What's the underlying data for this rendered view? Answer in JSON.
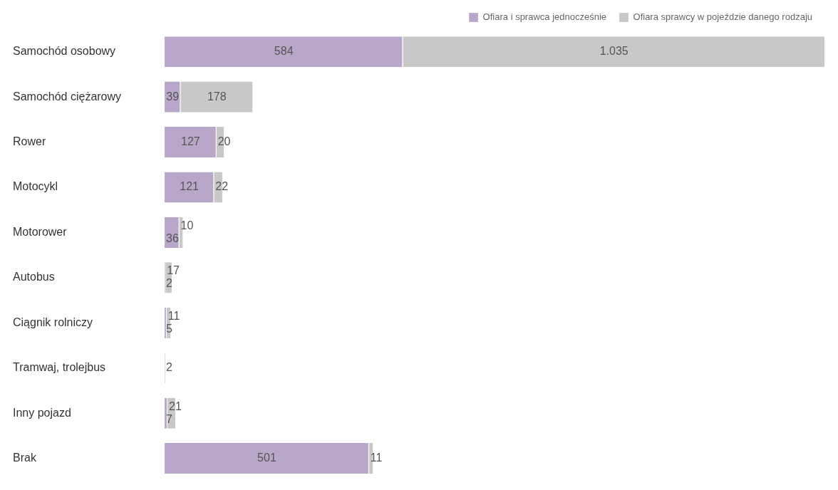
{
  "chart_data": {
    "type": "bar",
    "orientation": "horizontal",
    "stacked": true,
    "legend": "top right",
    "grid": false,
    "tick_labels": "y",
    "categories": [
      "Samochód osobowy",
      "Samochód ciężarowy",
      "Rower",
      "Motocykl",
      "Motorower",
      "Autobus",
      "Ciągnik rolniczy",
      "Tramwaj, trolejbus",
      "Inny pojazd",
      "Brak"
    ],
    "series": [
      {
        "name": "Ofiara i sprawca jednocześnie",
        "color": "#b9a7c9",
        "values": [
          584,
          39,
          127,
          121,
          36,
          2,
          5,
          null,
          7,
          501
        ],
        "value_labels": [
          "584",
          "39",
          "127",
          "121",
          "36",
          "2",
          "5",
          null,
          "7",
          "501"
        ]
      },
      {
        "name": "Ofiara sprawcy w pojeździe danego rodzaju",
        "color": "#c8c8c8",
        "values": [
          1035,
          178,
          20,
          22,
          10,
          17,
          11,
          2,
          21,
          11
        ],
        "value_labels": [
          "1.035",
          "178",
          "20",
          "22",
          "10",
          "17",
          "11",
          "2",
          "21",
          "11"
        ]
      }
    ]
  }
}
